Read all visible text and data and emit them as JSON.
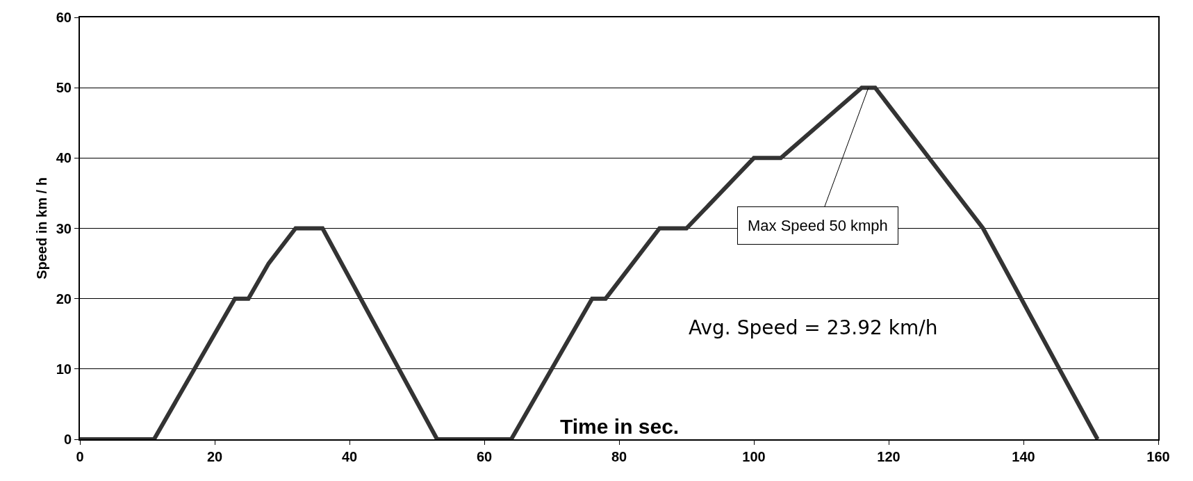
{
  "chart_data": {
    "type": "line",
    "xlabel": "Time in sec.",
    "ylabel": "Speed in km / h",
    "x": [
      0,
      11,
      23,
      25,
      28,
      32,
      36,
      53,
      64,
      76,
      78,
      86,
      90,
      100,
      104,
      116,
      118,
      134,
      151
    ],
    "series": [
      {
        "color": "#333333",
        "values": [
          0,
          0,
          20,
          20,
          25,
          30,
          30,
          0,
          0,
          20,
          20,
          30,
          30,
          40,
          40,
          50,
          50,
          30,
          0
        ]
      }
    ],
    "xlim": [
      0,
      160
    ],
    "xticks": [
      0,
      20,
      40,
      60,
      80,
      100,
      120,
      140,
      160
    ],
    "ylim": [
      0,
      60
    ],
    "yticks": [
      0,
      10,
      20,
      30,
      40,
      50,
      60
    ],
    "grid": "y",
    "marker": "none",
    "line_style": "solid",
    "annotations": [
      {
        "text": "Max Speed 50 kmph",
        "x": 117,
        "y": 50
      },
      "Avg. Speed = 23.92 km/h"
    ]
  }
}
